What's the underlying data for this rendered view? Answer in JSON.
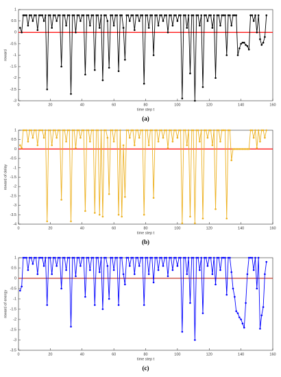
{
  "chart_data": [
    {
      "type": "line",
      "caption": "(a)",
      "xlabel": "time step t",
      "ylabel": "reward",
      "xlim": [
        0,
        160
      ],
      "xticks": [
        0,
        20,
        40,
        60,
        80,
        100,
        120,
        140,
        160
      ],
      "ylim": [
        -3,
        1
      ],
      "yticks": [
        -3,
        -2.5,
        -2,
        -1.5,
        -1,
        -0.5,
        0,
        0.5,
        1
      ],
      "reference_line": {
        "value": 0,
        "color": "#ff0000"
      },
      "x": [
        1,
        2,
        3,
        4,
        5,
        6,
        7,
        8,
        9,
        10,
        11,
        12,
        13,
        14,
        15,
        16,
        17,
        18,
        19,
        20,
        21,
        22,
        23,
        24,
        25,
        26,
        27,
        28,
        29,
        30,
        31,
        32,
        33,
        34,
        35,
        36,
        37,
        38,
        39,
        40,
        41,
        42,
        43,
        44,
        45,
        46,
        47,
        48,
        49,
        50,
        51,
        52,
        53,
        54,
        55,
        56,
        57,
        58,
        59,
        60,
        61,
        62,
        63,
        64,
        65,
        66,
        67,
        68,
        69,
        70,
        71,
        72,
        73,
        74,
        75,
        76,
        77,
        78,
        79,
        80,
        81,
        82,
        83,
        84,
        85,
        86,
        87,
        88,
        89,
        90,
        91,
        92,
        93,
        94,
        95,
        96,
        97,
        98,
        99,
        100,
        101,
        102,
        103,
        104,
        105,
        106,
        107,
        108,
        109,
        110,
        111,
        112,
        113,
        114,
        115,
        116,
        117,
        118,
        119,
        120,
        121,
        122,
        123,
        124,
        125,
        126,
        127,
        128,
        129,
        130,
        131,
        132,
        133,
        134,
        135,
        136,
        137,
        138,
        139,
        140,
        141,
        142,
        143,
        144,
        145,
        146,
        147,
        148,
        149,
        150,
        151,
        152,
        153,
        154,
        155,
        156
      ],
      "series": [
        {
          "color": "#000000",
          "values": [
            0.2,
            0,
            0.75,
            0.75,
            0.75,
            0.3,
            0.75,
            0.75,
            0.5,
            0.75,
            0.75,
            0.1,
            0.75,
            0.75,
            0.75,
            0.5,
            0.75,
            -2.5,
            0.75,
            0.75,
            0.2,
            0.75,
            0.75,
            0.5,
            0.75,
            0.75,
            -1.5,
            0.75,
            0.75,
            0.3,
            0.75,
            0.75,
            -2.7,
            0.75,
            0.75,
            0,
            0.75,
            0.75,
            0.5,
            0.75,
            0.75,
            -1.85,
            0.75,
            0.75,
            0.3,
            0.75,
            0.75,
            -1.65,
            0.75,
            0.75,
            0.2,
            0.75,
            -2.1,
            0.75,
            0.75,
            0.5,
            -1.55,
            0.75,
            0.75,
            0.3,
            0.75,
            0.75,
            -1.7,
            0.75,
            0.75,
            0.2,
            -1.2,
            0.75,
            0.75,
            0.5,
            0.75,
            0.75,
            0.1,
            0.75,
            0.75,
            0.5,
            0.75,
            0.75,
            -2.25,
            0.75,
            0.75,
            0.2,
            0.75,
            0.75,
            -1,
            0.75,
            0.75,
            0.3,
            0.75,
            0.75,
            0.5,
            0.75,
            0.75,
            0,
            0.75,
            0.75,
            0.3,
            0.75,
            0.75,
            0.5,
            0.75,
            0.75,
            -2.9,
            0.75,
            0.75,
            0.2,
            0.75,
            -1.8,
            0.75,
            0.75,
            -3,
            0.75,
            0.75,
            0.3,
            0.75,
            -2.4,
            0.75,
            0.75,
            0.5,
            0.75,
            0.75,
            0.2,
            0.75,
            -2,
            0.75,
            0.75,
            0.3,
            0.75,
            0.75,
            0.75,
            -1,
            0.75,
            0.75,
            0.3,
            0.75,
            0.75,
            0.75,
            -1,
            -0.7,
            -0.5,
            -0.45,
            -0.45,
            -0.55,
            -0.6,
            -0.75,
            0.75,
            0.75,
            0.5,
            0.75,
            0,
            0.75,
            -0.3,
            -0.55,
            -0.45,
            -0.2,
            0.75
          ]
        }
      ]
    },
    {
      "type": "line",
      "caption": "(b)",
      "xlabel": "time step t",
      "ylabel": "reward of delay",
      "xlim": [
        0,
        160
      ],
      "xticks": [
        0,
        20,
        40,
        60,
        80,
        100,
        120,
        140,
        160
      ],
      "ylim": [
        -4,
        1
      ],
      "yticks": [
        -4,
        -3.5,
        -3,
        -2.5,
        -2,
        -1.5,
        -1,
        -0.5,
        0,
        0.5,
        1
      ],
      "reference_line": {
        "value": 0,
        "color": "#ff0000"
      },
      "x": [
        1,
        2,
        3,
        4,
        5,
        6,
        7,
        8,
        9,
        10,
        11,
        12,
        13,
        14,
        15,
        16,
        17,
        18,
        19,
        20,
        21,
        22,
        23,
        24,
        25,
        26,
        27,
        28,
        29,
        30,
        31,
        32,
        33,
        34,
        35,
        36,
        37,
        38,
        39,
        40,
        41,
        42,
        43,
        44,
        45,
        46,
        47,
        48,
        49,
        50,
        51,
        52,
        53,
        54,
        55,
        56,
        57,
        58,
        59,
        60,
        61,
        62,
        63,
        64,
        65,
        66,
        67,
        68,
        69,
        70,
        71,
        72,
        73,
        74,
        75,
        76,
        77,
        78,
        79,
        80,
        81,
        82,
        83,
        84,
        85,
        86,
        87,
        88,
        89,
        90,
        91,
        92,
        93,
        94,
        95,
        96,
        97,
        98,
        99,
        100,
        101,
        102,
        103,
        104,
        105,
        106,
        107,
        108,
        109,
        110,
        111,
        112,
        113,
        114,
        115,
        116,
        117,
        118,
        119,
        120,
        121,
        122,
        123,
        124,
        125,
        126,
        127,
        128,
        129,
        130,
        131,
        132,
        133,
        134,
        135,
        136,
        137,
        138,
        139,
        140,
        141,
        142,
        143,
        144,
        145,
        146,
        147,
        148,
        149,
        150,
        151,
        152,
        153,
        154,
        155,
        156
      ],
      "series": [
        {
          "color": "#edb120",
          "values": [
            0.2,
            0.05,
            1,
            1,
            1,
            0.4,
            1,
            1,
            0.6,
            1,
            1,
            0.2,
            1,
            1,
            1,
            0.6,
            1,
            -3.85,
            1,
            1,
            0.2,
            1,
            1,
            0.6,
            1,
            1,
            -2.7,
            1,
            1,
            0.4,
            1,
            1,
            -3.85,
            1,
            1,
            0.05,
            1,
            1,
            0.6,
            1,
            1,
            -3.3,
            1,
            1,
            0.4,
            1,
            1,
            -3.4,
            1,
            1,
            -3.5,
            1,
            -3.6,
            1,
            1,
            0.6,
            -2.4,
            1,
            1,
            0.4,
            1,
            1,
            -3.5,
            1,
            -3.6,
            0.2,
            -2.55,
            1,
            1,
            0.6,
            1,
            1,
            0.2,
            1,
            1,
            0.6,
            1,
            1,
            -3.5,
            1,
            1,
            0.2,
            1,
            1,
            -2.6,
            1,
            1,
            0.4,
            1,
            1,
            0.6,
            1,
            1,
            0.05,
            1,
            1,
            0.4,
            1,
            1,
            0.6,
            1,
            1,
            -3.95,
            1,
            1,
            0.2,
            1,
            -3.6,
            1,
            1,
            -3.95,
            1,
            1,
            0.4,
            1,
            -3.7,
            1,
            1,
            0.6,
            1,
            1,
            0.2,
            1,
            -3.2,
            1,
            1,
            0.4,
            1,
            1,
            1,
            -3.7,
            1,
            1,
            -0.6,
            0,
            0,
            0,
            0,
            0,
            0,
            0,
            0,
            0,
            0,
            0,
            1,
            1,
            0.6,
            1,
            0.05,
            1,
            0.4,
            1,
            1,
            0.6,
            1
          ]
        }
      ]
    },
    {
      "type": "line",
      "caption": "(c)",
      "xlabel": "time step t",
      "ylabel": "reward of energy",
      "xlim": [
        0,
        160
      ],
      "xticks": [
        0,
        20,
        40,
        60,
        80,
        100,
        120,
        140,
        160
      ],
      "ylim": [
        -3.5,
        1
      ],
      "yticks": [
        -3.5,
        -3,
        -2.5,
        -2,
        -1.5,
        -1,
        -0.5,
        0,
        0.5,
        1
      ],
      "reference_line": {
        "value": 0,
        "color": "#c0392b"
      },
      "x": [
        1,
        2,
        3,
        4,
        5,
        6,
        7,
        8,
        9,
        10,
        11,
        12,
        13,
        14,
        15,
        16,
        17,
        18,
        19,
        20,
        21,
        22,
        23,
        24,
        25,
        26,
        27,
        28,
        29,
        30,
        31,
        32,
        33,
        34,
        35,
        36,
        37,
        38,
        39,
        40,
        41,
        42,
        43,
        44,
        45,
        46,
        47,
        48,
        49,
        50,
        51,
        52,
        53,
        54,
        55,
        56,
        57,
        58,
        59,
        60,
        61,
        62,
        63,
        64,
        65,
        66,
        67,
        68,
        69,
        70,
        71,
        72,
        73,
        74,
        75,
        76,
        77,
        78,
        79,
        80,
        81,
        82,
        83,
        84,
        85,
        86,
        87,
        88,
        89,
        90,
        91,
        92,
        93,
        94,
        95,
        96,
        97,
        98,
        99,
        100,
        101,
        102,
        103,
        104,
        105,
        106,
        107,
        108,
        109,
        110,
        111,
        112,
        113,
        114,
        115,
        116,
        117,
        118,
        119,
        120,
        121,
        122,
        123,
        124,
        125,
        126,
        127,
        128,
        129,
        130,
        131,
        132,
        133,
        134,
        135,
        136,
        137,
        138,
        139,
        140,
        141,
        142,
        143,
        144,
        145,
        146,
        147,
        148,
        149,
        150,
        151,
        152,
        153,
        154,
        155,
        156
      ],
      "series": [
        {
          "color": "#0000ff",
          "values": [
            -0.6,
            -0.4,
            1,
            1,
            1,
            0.4,
            1,
            1,
            0.7,
            1,
            1,
            0.2,
            1,
            1,
            1,
            0.6,
            1,
            -1.3,
            1,
            1,
            0.2,
            1,
            1,
            0.6,
            1,
            1,
            -0.5,
            1,
            1,
            0.4,
            1,
            1,
            -2.35,
            1,
            1,
            0.1,
            1,
            1,
            0.6,
            1,
            1,
            -0.9,
            1,
            1,
            0.4,
            1,
            1,
            -1.3,
            1,
            1,
            0.3,
            1,
            -1.5,
            1,
            1,
            0.6,
            -1,
            1,
            1,
            0.4,
            1,
            1,
            -1.3,
            1,
            1,
            0.2,
            -0.3,
            1,
            1,
            0.6,
            1,
            1,
            0.2,
            1,
            1,
            0.6,
            1,
            1,
            -1.3,
            1,
            1,
            0.2,
            1,
            1,
            -0.2,
            1,
            1,
            0.4,
            1,
            1,
            0.6,
            1,
            1,
            0.1,
            1,
            1,
            0.4,
            1,
            1,
            0.6,
            1,
            1,
            -2.6,
            1,
            1,
            0.2,
            1,
            -1.2,
            1,
            1,
            -3,
            1,
            1,
            0.4,
            1,
            -1.7,
            1,
            1,
            0.6,
            1,
            1,
            0.2,
            1,
            -0.3,
            1,
            1,
            0.4,
            1,
            1,
            1,
            -0.8,
            1,
            1,
            0.3,
            -0.5,
            -0.9,
            -1.6,
            -1.7,
            -1.9,
            -2.0,
            -2.2,
            -2.4,
            -1.2,
            0.2,
            1,
            1,
            1,
            0.4,
            1,
            -0.5,
            1,
            -2.45,
            -1.8,
            -1.4,
            0.2,
            0.8
          ]
        }
      ]
    }
  ]
}
